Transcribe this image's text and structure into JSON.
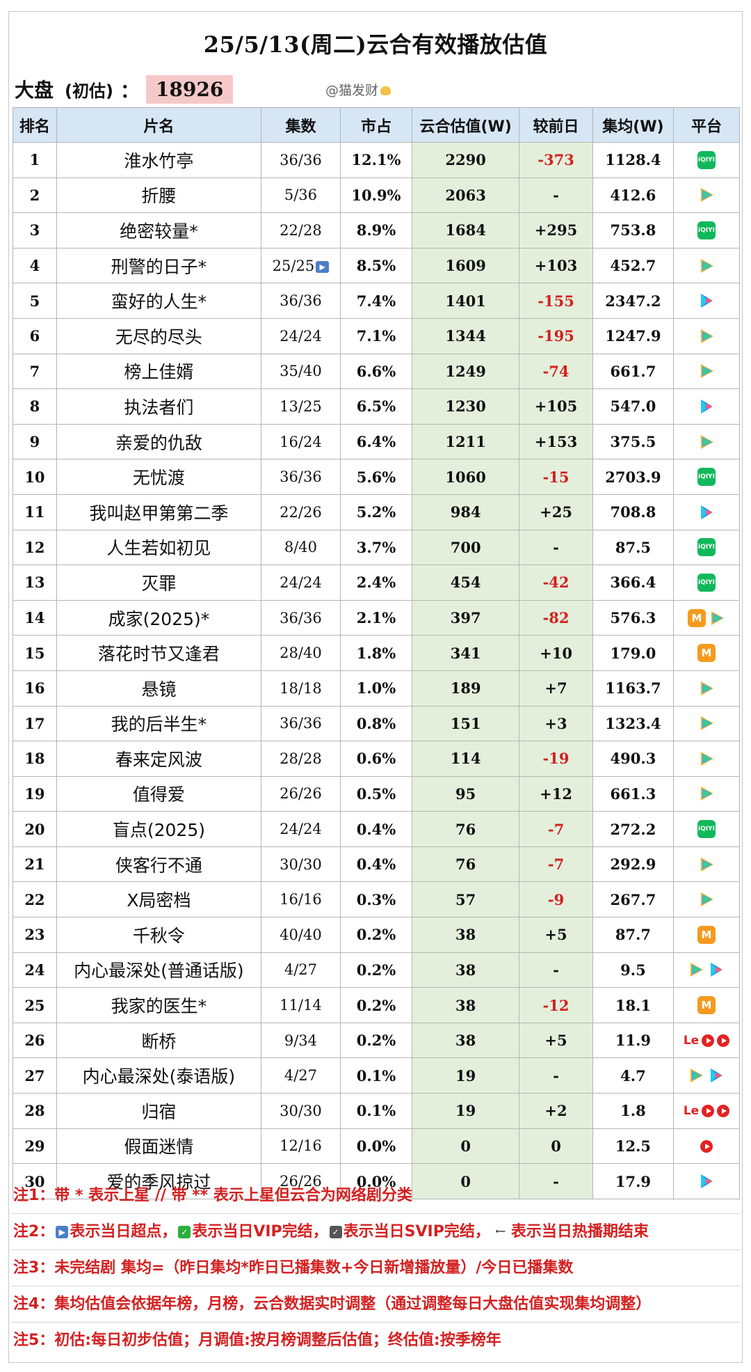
{
  "title": "25/5/13(周二)云合有效播放估值",
  "market": {
    "label": "大盘",
    "sub": "(初估)",
    "colon": "：",
    "value": "18926"
  },
  "watermark": "@猫发财",
  "headers": [
    "排名",
    "片名",
    "集数",
    "市占",
    "云合估值(W)",
    "较前日",
    "集均(W)",
    "平台"
  ],
  "rows": [
    {
      "rank": "1",
      "name": "淮水竹亭",
      "eps": "36/36",
      "share": "12.1%",
      "est": "2290",
      "diff": "-373",
      "avg": "1128.4",
      "platforms": [
        "iqiyi"
      ]
    },
    {
      "rank": "2",
      "name": "折腰",
      "eps": "5/36",
      "share": "10.9%",
      "est": "2063",
      "diff": "-",
      "avg": "412.6",
      "platforms": [
        "tencent"
      ]
    },
    {
      "rank": "3",
      "name": "绝密较量*",
      "eps": "22/28",
      "share": "8.9%",
      "est": "1684",
      "diff": "+295",
      "avg": "753.8",
      "platforms": [
        "iqiyi"
      ]
    },
    {
      "rank": "4",
      "name": "刑警的日子*",
      "eps": "25/25",
      "share": "8.5%",
      "est": "1609",
      "diff": "+103",
      "avg": "452.7",
      "platforms": [
        "tencent"
      ],
      "ff": true
    },
    {
      "rank": "5",
      "name": "蛮好的人生*",
      "eps": "36/36",
      "share": "7.4%",
      "est": "1401",
      "diff": "-155",
      "avg": "2347.2",
      "platforms": [
        "youku"
      ]
    },
    {
      "rank": "6",
      "name": "无尽的尽头",
      "eps": "24/24",
      "share": "7.1%",
      "est": "1344",
      "diff": "-195",
      "avg": "1247.9",
      "platforms": [
        "tencent"
      ]
    },
    {
      "rank": "7",
      "name": "榜上佳婿",
      "eps": "35/40",
      "share": "6.6%",
      "est": "1249",
      "diff": "-74",
      "avg": "661.7",
      "platforms": [
        "tencent"
      ]
    },
    {
      "rank": "8",
      "name": "执法者们",
      "eps": "13/25",
      "share": "6.5%",
      "est": "1230",
      "diff": "+105",
      "avg": "547.0",
      "platforms": [
        "youku"
      ]
    },
    {
      "rank": "9",
      "name": "亲爱的仇敌",
      "eps": "16/24",
      "share": "6.4%",
      "est": "1211",
      "diff": "+153",
      "avg": "375.5",
      "platforms": [
        "tencent"
      ]
    },
    {
      "rank": "10",
      "name": "无忧渡",
      "eps": "36/36",
      "share": "5.6%",
      "est": "1060",
      "diff": "-15",
      "avg": "2703.9",
      "platforms": [
        "iqiyi"
      ]
    },
    {
      "rank": "11",
      "name": "我叫赵甲第第二季",
      "eps": "22/26",
      "share": "5.2%",
      "est": "984",
      "diff": "+25",
      "avg": "708.8",
      "platforms": [
        "youku"
      ]
    },
    {
      "rank": "12",
      "name": "人生若如初见",
      "eps": "8/40",
      "share": "3.7%",
      "est": "700",
      "diff": "-",
      "avg": "87.5",
      "platforms": [
        "iqiyi"
      ]
    },
    {
      "rank": "13",
      "name": "灭罪",
      "eps": "24/24",
      "share": "2.4%",
      "est": "454",
      "diff": "-42",
      "avg": "366.4",
      "platforms": [
        "iqiyi"
      ]
    },
    {
      "rank": "14",
      "name": "成家(2025)*",
      "eps": "36/36",
      "share": "2.1%",
      "est": "397",
      "diff": "-82",
      "avg": "576.3",
      "platforms": [
        "mango",
        "tencent"
      ]
    },
    {
      "rank": "15",
      "name": "落花时节又逢君",
      "eps": "28/40",
      "share": "1.8%",
      "est": "341",
      "diff": "+10",
      "avg": "179.0",
      "platforms": [
        "mango"
      ]
    },
    {
      "rank": "16",
      "name": "悬镜",
      "eps": "18/18",
      "share": "1.0%",
      "est": "189",
      "diff": "+7",
      "avg": "1163.7",
      "platforms": [
        "tencent"
      ]
    },
    {
      "rank": "17",
      "name": "我的后半生*",
      "eps": "36/36",
      "share": "0.8%",
      "est": "151",
      "diff": "+3",
      "avg": "1323.4",
      "platforms": [
        "tencent"
      ]
    },
    {
      "rank": "18",
      "name": "春来定风波",
      "eps": "28/28",
      "share": "0.6%",
      "est": "114",
      "diff": "-19",
      "avg": "490.3",
      "platforms": [
        "tencent"
      ]
    },
    {
      "rank": "19",
      "name": "值得爱",
      "eps": "26/26",
      "share": "0.5%",
      "est": "95",
      "diff": "+12",
      "avg": "661.3",
      "platforms": [
        "tencent"
      ]
    },
    {
      "rank": "20",
      "name": "盲点(2025)",
      "eps": "24/24",
      "share": "0.4%",
      "est": "76",
      "diff": "-7",
      "avg": "272.2",
      "platforms": [
        "iqiyi"
      ]
    },
    {
      "rank": "21",
      "name": "侠客行不通",
      "eps": "30/30",
      "share": "0.4%",
      "est": "76",
      "diff": "-7",
      "avg": "292.9",
      "platforms": [
        "tencent"
      ]
    },
    {
      "rank": "22",
      "name": "X局密档",
      "eps": "16/16",
      "share": "0.3%",
      "est": "57",
      "diff": "-9",
      "avg": "267.7",
      "platforms": [
        "tencent"
      ]
    },
    {
      "rank": "23",
      "name": "千秋令",
      "eps": "40/40",
      "share": "0.2%",
      "est": "38",
      "diff": "+5",
      "avg": "87.7",
      "platforms": [
        "mango"
      ]
    },
    {
      "rank": "24",
      "name": "内心最深处(普通话版)",
      "eps": "4/27",
      "share": "0.2%",
      "est": "38",
      "diff": "-",
      "avg": "9.5",
      "platforms": [
        "tencent",
        "youku"
      ]
    },
    {
      "rank": "25",
      "name": "我家的医生*",
      "eps": "11/14",
      "share": "0.2%",
      "est": "38",
      "diff": "-12",
      "avg": "18.1",
      "platforms": [
        "mango"
      ]
    },
    {
      "rank": "26",
      "name": "断桥",
      "eps": "9/34",
      "share": "0.2%",
      "est": "38",
      "diff": "+5",
      "avg": "11.9",
      "platforms": [
        "le",
        "redplay",
        "redplay"
      ]
    },
    {
      "rank": "27",
      "name": "内心最深处(泰语版)",
      "eps": "4/27",
      "share": "0.1%",
      "est": "19",
      "diff": "-",
      "avg": "4.7",
      "platforms": [
        "tencent",
        "youku"
      ]
    },
    {
      "rank": "28",
      "name": "归宿",
      "eps": "30/30",
      "share": "0.1%",
      "est": "19",
      "diff": "+2",
      "avg": "1.8",
      "platforms": [
        "le",
        "redplay",
        "redplay"
      ]
    },
    {
      "rank": "29",
      "name": "假面迷情",
      "eps": "12/16",
      "share": "0.0%",
      "est": "0",
      "diff": "0",
      "avg": "12.5",
      "platforms": [
        "redplay"
      ]
    },
    {
      "rank": "30",
      "name": "爱的季风掠过",
      "eps": "26/26",
      "share": "0.0%",
      "est": "0",
      "diff": "-",
      "avg": "17.9",
      "platforms": [
        "youku"
      ]
    }
  ],
  "notes": {
    "n1": "注1：带 * 表示上星 // 带 ** 表示上星但云合为网络剧分类",
    "n2_prefix": "注2：",
    "n2_a": "表示当日超点，",
    "n2_b": "表示当日VIP完结，",
    "n2_c": "表示当日SVIP完结，",
    "n2_d": "表示当日热播期结束",
    "n3": "注3：未完结剧 集均=（昨日集均*昨日已播集数+今日新增播放量）/今日已播集数",
    "n4": "注4：集均估值会依据年榜，月榜，云合数据实时调整（通过调整每日大盘估值实现集均调整）",
    "n5": "注5：初估:每日初步估值；月调值:按月榜调整后估值；终估值:按季榜年"
  },
  "icons": {
    "iqiyi": "iqiyi-icon",
    "tencent": "tencent-video-icon",
    "youku": "youku-icon",
    "mango": "mango-tv-icon",
    "le": "letv-icon",
    "redplay": "red-play-icon"
  },
  "colors": {
    "header_bg": "#d6e6f4",
    "est_bg": "#e3efdb",
    "negative": "#d42020",
    "note": "#d42020",
    "market_bg": "#f6c9c9"
  }
}
